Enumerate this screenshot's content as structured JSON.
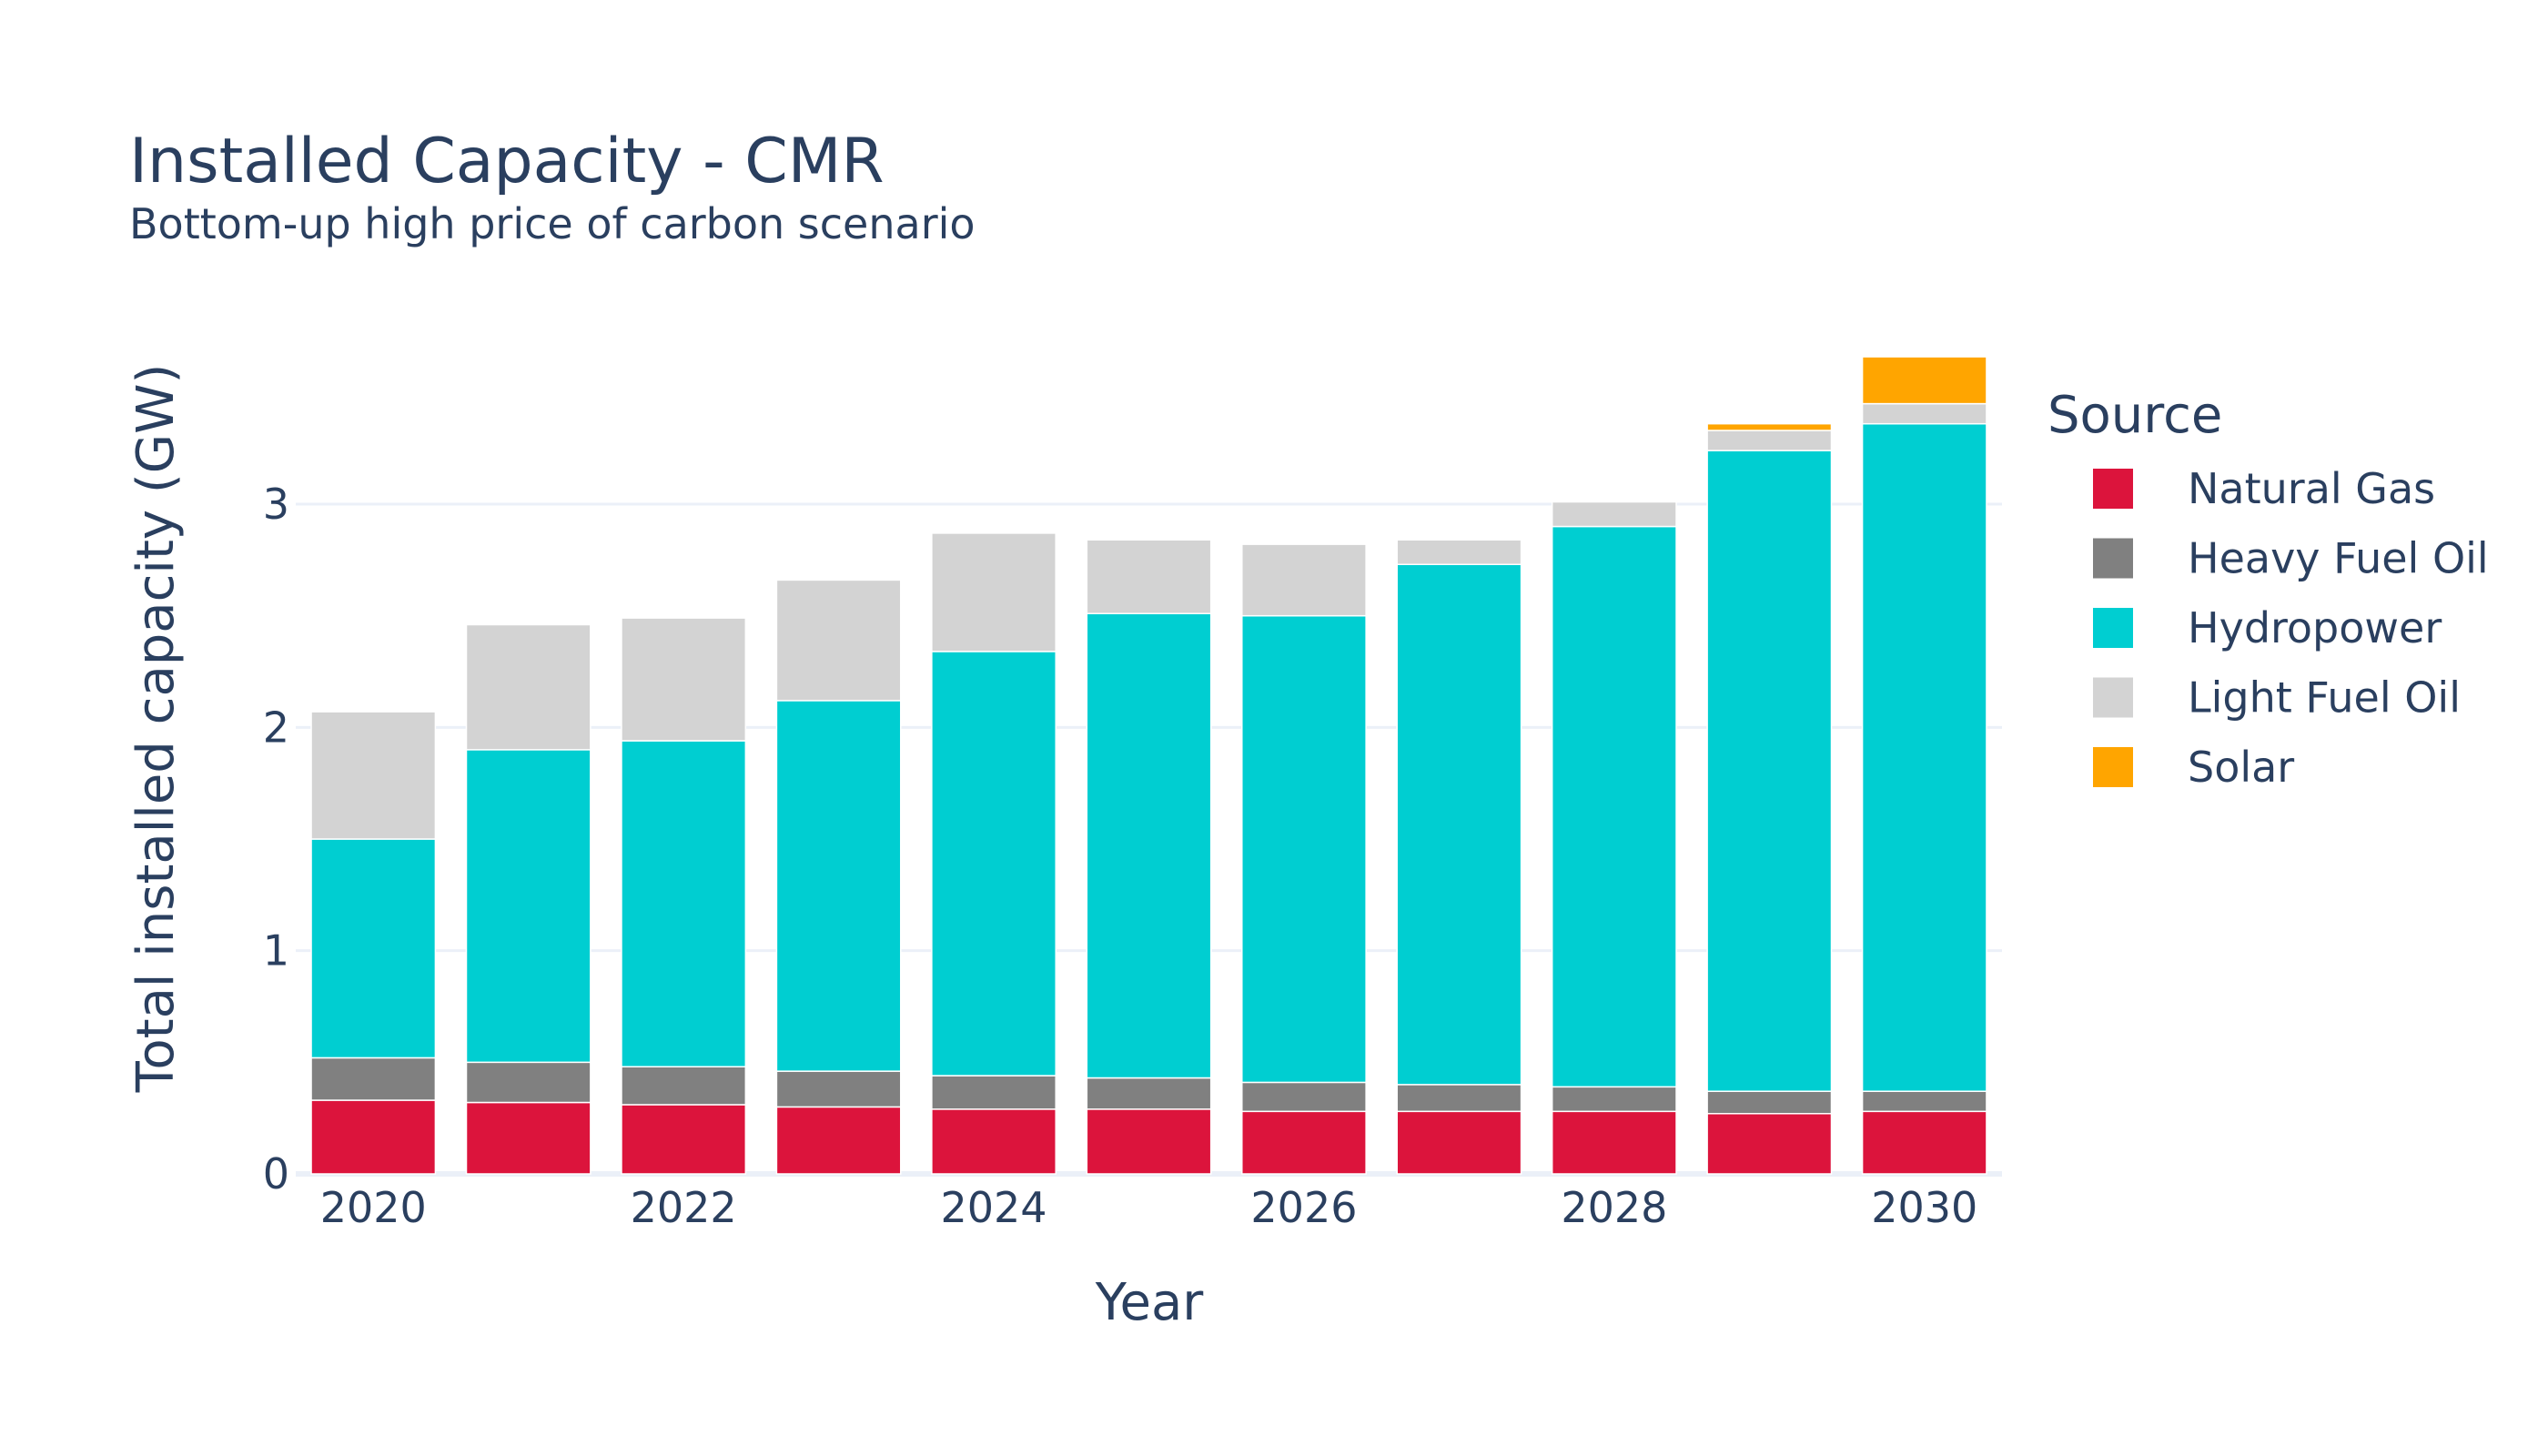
{
  "chart_data": {
    "type": "bar",
    "barmode": "stack",
    "title": "Installed Capacity - CMR",
    "subtitle": "Bottom-up high price of carbon scenario",
    "xlabel": "Year",
    "ylabel": "Total installed capacity (GW)",
    "ylim": [
      0,
      3.75
    ],
    "yticks": [
      0,
      1,
      2,
      3
    ],
    "x": [
      2020,
      2021,
      2022,
      2023,
      2024,
      2025,
      2026,
      2027,
      2028,
      2029,
      2030
    ],
    "xticks": [
      "2020",
      "2022",
      "2024",
      "2026",
      "2028",
      "2030"
    ],
    "grid": "horizontal",
    "legend": {
      "title": "Source",
      "placement": "right"
    },
    "series": [
      {
        "name": "Natural Gas",
        "color": "#dc143c",
        "values": [
          0.33,
          0.32,
          0.31,
          0.3,
          0.29,
          0.29,
          0.28,
          0.28,
          0.28,
          0.27,
          0.28
        ]
      },
      {
        "name": "Heavy Fuel Oil",
        "color": "#808080",
        "values": [
          0.19,
          0.18,
          0.17,
          0.16,
          0.15,
          0.14,
          0.13,
          0.12,
          0.11,
          0.1,
          0.09
        ]
      },
      {
        "name": "Hydropower",
        "color": "#00ced1",
        "values": [
          0.98,
          1.4,
          1.46,
          1.66,
          1.9,
          2.08,
          2.09,
          2.33,
          2.51,
          2.87,
          2.99
        ]
      },
      {
        "name": "Light Fuel Oil",
        "color": "#d3d3d3",
        "values": [
          0.57,
          0.56,
          0.55,
          0.54,
          0.53,
          0.33,
          0.32,
          0.11,
          0.11,
          0.09,
          0.09
        ]
      },
      {
        "name": "Solar",
        "color": "#ffa500",
        "values": [
          0,
          0,
          0,
          0,
          0,
          0,
          0,
          0,
          0,
          0.03,
          0.21
        ]
      }
    ]
  }
}
